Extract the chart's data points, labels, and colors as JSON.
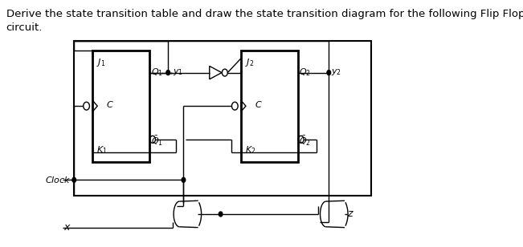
{
  "title_line1": "Derive the state transition table and draw the state transition diagram for the following Flip Flop",
  "title_line2": "circuit.",
  "title_fontsize": 9.5,
  "bg_color": "#ffffff",
  "line_color": "#000000"
}
